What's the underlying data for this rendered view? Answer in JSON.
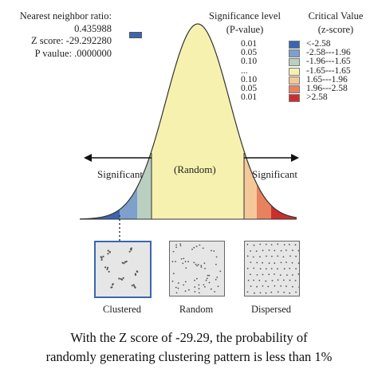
{
  "stats": {
    "nn_ratio_label": "Nearest neighbor ratio:",
    "nn_ratio_value": "0.435988",
    "z_score": "Z score: -29.292280",
    "p_value": "P vaulue: .0000000"
  },
  "legend": {
    "significance_title_1": "Significance level",
    "significance_title_2": "(P-value)",
    "critical_title_1": "Critical Value",
    "critical_title_2": "(z-score)",
    "rows": [
      {
        "p": "0.01",
        "z": "<-2.58",
        "color": "#3a66b0"
      },
      {
        "p": "0.05",
        "z": "-2.58---1.96",
        "color": "#7da0cc"
      },
      {
        "p": "0.10",
        "z": "-1.96---1.65",
        "color": "#b9cfc0"
      },
      {
        "p": "...",
        "z": "-1.65---1.65",
        "color": "#f7f1b0"
      },
      {
        "p": "0.10",
        "z": "1.65---1.96",
        "color": "#f5c89a"
      },
      {
        "p": "0.05",
        "z": "1.96---2.58",
        "color": "#e8825e"
      },
      {
        "p": "0.01",
        "z": ">2.58",
        "color": "#cc2e2e"
      }
    ]
  },
  "curve": {
    "random_label": "(Random)",
    "significant_left": "Significant",
    "significant_right": "Significant"
  },
  "patterns": [
    {
      "label": "Clustered"
    },
    {
      "label": "Random"
    },
    {
      "label": "Dispersed"
    }
  ],
  "footer": {
    "line1": "With the Z score of -29.29, the probability of",
    "line2": "randomly generating clustering pattern is less than 1%"
  }
}
